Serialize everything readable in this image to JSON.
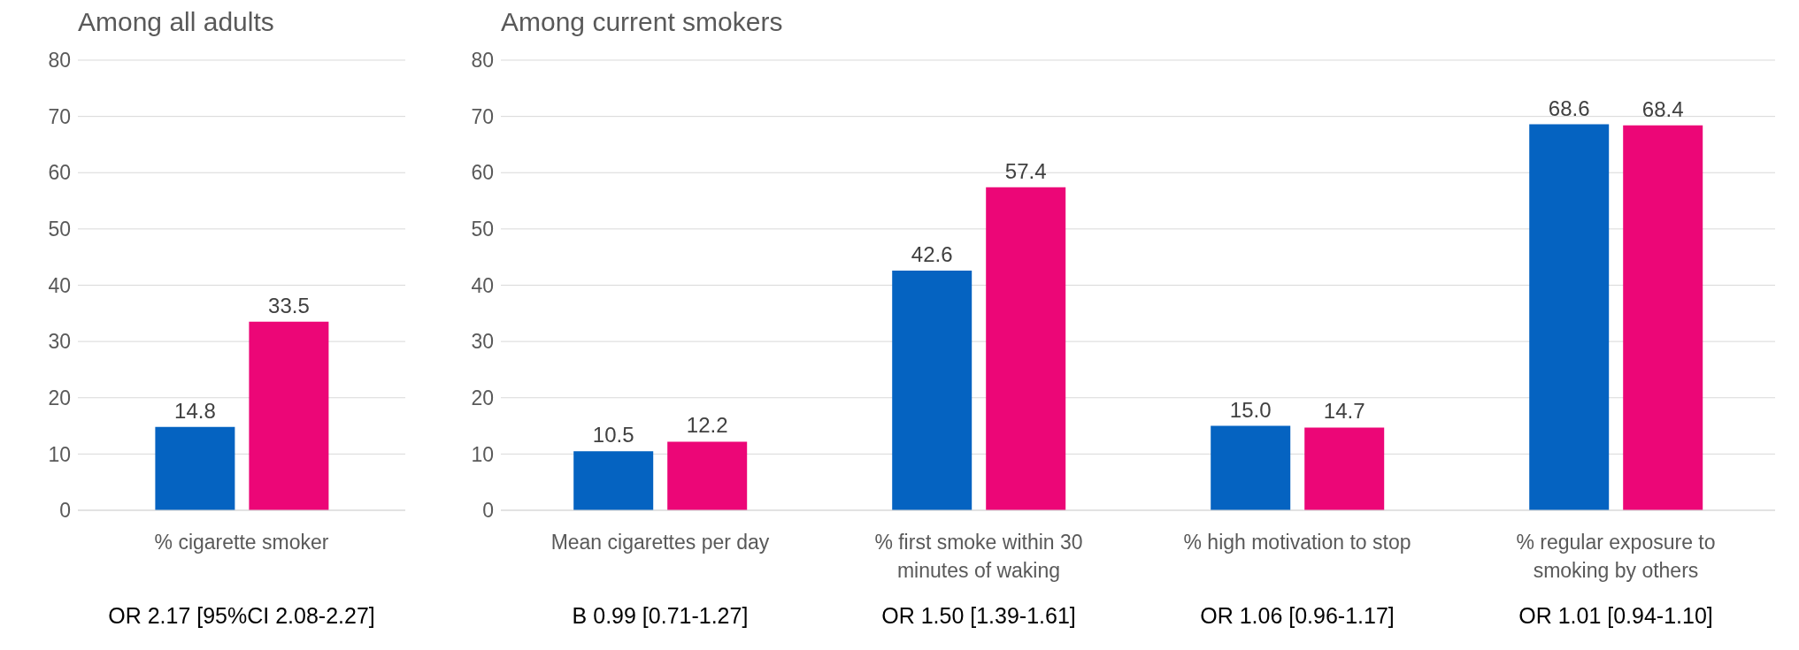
{
  "chart_data": [
    {
      "type": "bar",
      "title": "Among all adults",
      "categories": [
        "% cigarette smoker"
      ],
      "series": [
        {
          "color": "#0563c1",
          "values": [
            14.8
          ],
          "value_labels": [
            "14.8"
          ]
        },
        {
          "color": "#ec0677",
          "values": [
            33.5
          ],
          "value_labels": [
            "33.5"
          ]
        }
      ],
      "ylim": [
        0,
        80
      ],
      "yticks": [
        0,
        10,
        20,
        30,
        40,
        50,
        60,
        70,
        80
      ],
      "grid": "y",
      "annotations": [
        "OR 2.17 [95%CI 2.08-2.27]"
      ]
    },
    {
      "type": "bar",
      "title": "Among current smokers",
      "categories": [
        "Mean cigarettes per day",
        "% first smoke within 30 minutes of waking",
        "% high motivation to stop",
        "% regular exposure to smoking by others"
      ],
      "series": [
        {
          "color": "#0563c1",
          "values": [
            10.5,
            42.6,
            15.0,
            68.6
          ],
          "value_labels": [
            "10.5",
            "42.6",
            "15.0",
            "68.6"
          ]
        },
        {
          "color": "#ec0677",
          "values": [
            12.2,
            57.4,
            14.7,
            68.4
          ],
          "value_labels": [
            "12.2",
            "57.4",
            "14.7",
            "68.4"
          ]
        }
      ],
      "ylim": [
        0,
        80
      ],
      "yticks": [
        0,
        10,
        20,
        30,
        40,
        50,
        60,
        70,
        80
      ],
      "grid": "y",
      "annotations": [
        "B 0.99 [0.71-1.27]",
        "OR 1.50 [1.39-1.61]",
        "OR 1.06 [0.96-1.17]",
        "OR 1.01 [0.94-1.10]"
      ]
    }
  ]
}
